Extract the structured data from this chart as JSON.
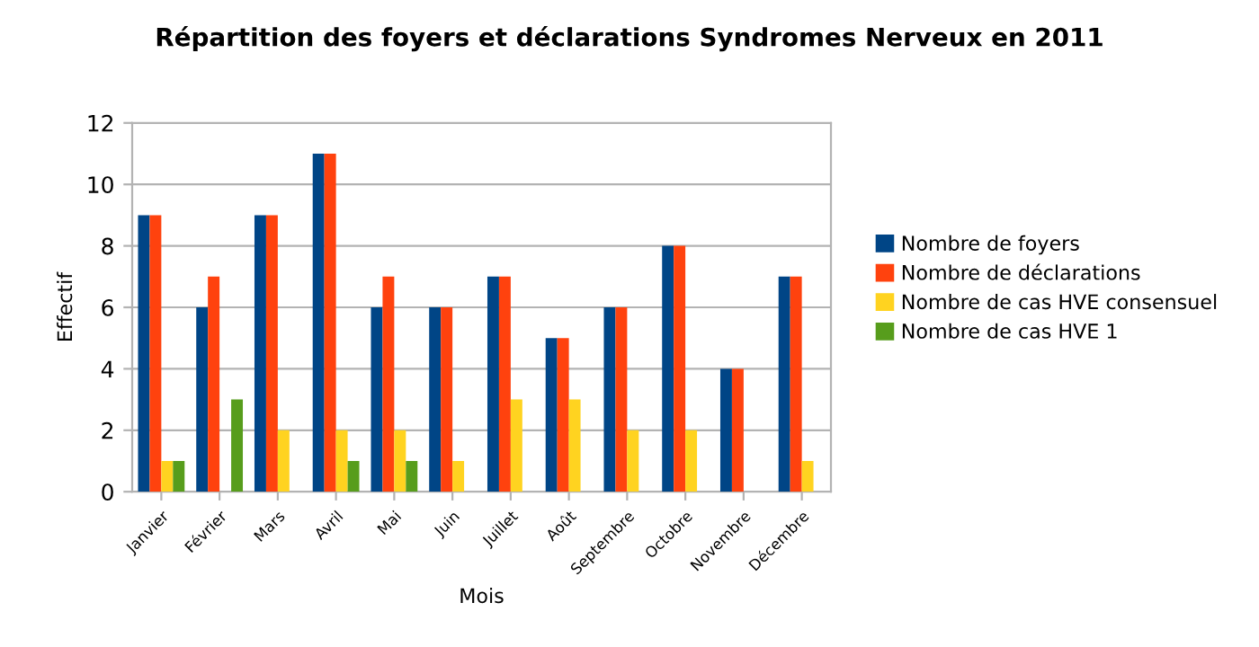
{
  "chart_data": {
    "type": "bar",
    "title": "Répartition des foyers et déclarations Syndromes Nerveux en 2011",
    "xlabel": "Mois",
    "ylabel": "Effectif",
    "categories": [
      "Janvier",
      "Février",
      "Mars",
      "Avril",
      "Mai",
      "Juin",
      "Juillet",
      "Août",
      "Septembre",
      "Octobre",
      "Novembre",
      "Décembre"
    ],
    "series": [
      {
        "name": "Nombre de foyers",
        "color": "#004586",
        "values": [
          9,
          6,
          9,
          11,
          6,
          6,
          7,
          5,
          6,
          8,
          4,
          7
        ]
      },
      {
        "name": "Nombre de déclarations",
        "color": "#ff420e",
        "values": [
          9,
          7,
          9,
          11,
          7,
          6,
          7,
          5,
          6,
          8,
          4,
          7
        ]
      },
      {
        "name": "Nombre de cas HVE consensuel",
        "color": "#ffd320",
        "values": [
          1,
          null,
          2,
          2,
          2,
          1,
          3,
          3,
          2,
          2,
          null,
          1
        ]
      },
      {
        "name": "Nombre de cas HVE 1",
        "color": "#579d1c",
        "values": [
          1,
          3,
          null,
          1,
          1,
          null,
          null,
          null,
          null,
          null,
          null,
          null
        ]
      }
    ],
    "ylim": [
      0,
      12
    ],
    "yticks": [
      0,
      2,
      4,
      6,
      8,
      10,
      12
    ],
    "grid": "y",
    "legend": "right"
  }
}
